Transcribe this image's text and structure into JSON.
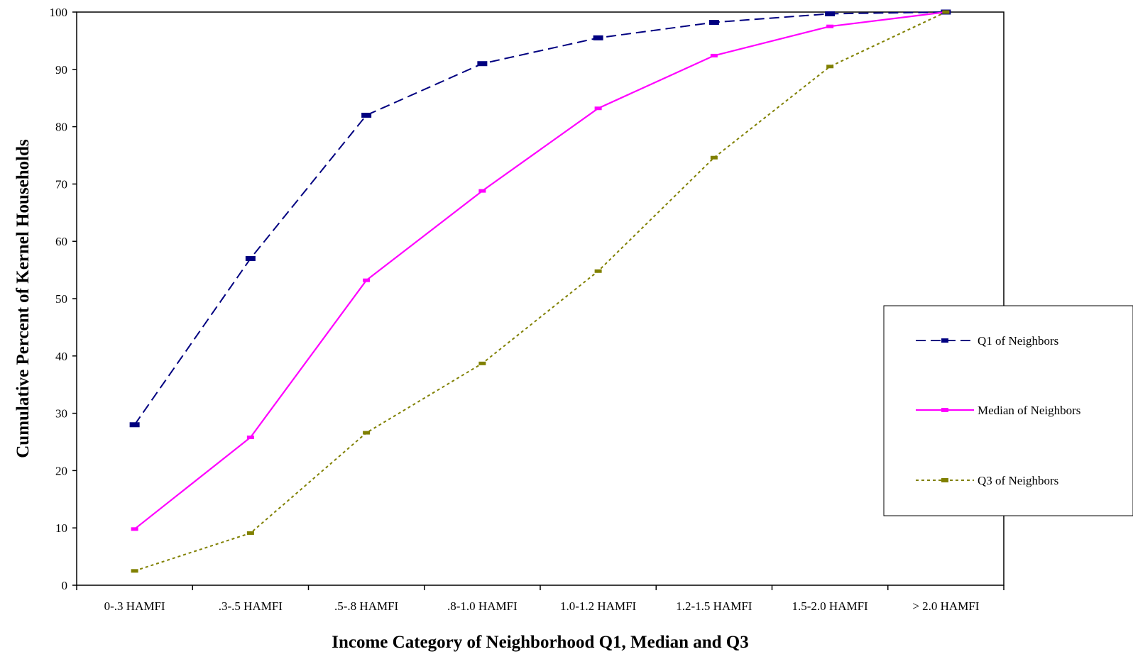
{
  "chart_data": {
    "type": "line",
    "title": "",
    "xlabel": "Income Category of Neighborhood Q1, Median and Q3",
    "ylabel": "Cumulative Percent of Kernel Households",
    "categories": [
      "0-.3 HAMFI",
      ".3-.5 HAMFI",
      ".5-.8 HAMFI",
      ".8-1.0 HAMFI",
      "1.0-1.2 HAMFI",
      "1.2-1.5 HAMFI",
      "1.5-2.0 HAMFI",
      "> 2.0  HAMFI"
    ],
    "ylim": [
      0,
      100
    ],
    "yticks": [
      0,
      10,
      20,
      30,
      40,
      50,
      60,
      70,
      80,
      90,
      100
    ],
    "grid": false,
    "legend_position": "right",
    "series": [
      {
        "name": "Q1 of Neighbors",
        "color": "#000080",
        "dash": "dashed",
        "values": [
          28.0,
          57.0,
          82.0,
          91.0,
          95.5,
          98.2,
          99.7,
          100
        ]
      },
      {
        "name": "Median of Neighbors",
        "color": "#ff00ff",
        "dash": "solid",
        "values": [
          9.8,
          25.8,
          53.2,
          68.8,
          83.2,
          92.4,
          97.5,
          100
        ]
      },
      {
        "name": "Q3 of Neighbors",
        "color": "#808000",
        "dash": "dotted",
        "values": [
          2.5,
          9.1,
          26.6,
          38.7,
          54.8,
          74.6,
          90.5,
          100
        ]
      }
    ]
  }
}
